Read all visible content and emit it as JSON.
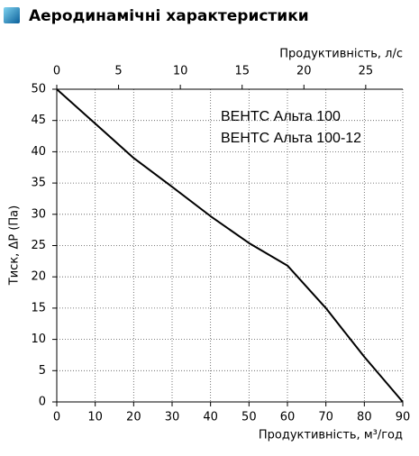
{
  "chart_data": {
    "type": "line",
    "title": "Аеродинамічні характеристики",
    "xlabel": "Продуктивність, м³/год",
    "x2label": "Продуктивність, л/с",
    "ylabel": "Тиск, ΔP (Па)",
    "annotations": [
      "ВЕНТС Альта 100",
      "ВЕНТС Альта 100-12"
    ],
    "x": [
      0,
      10,
      20,
      30,
      40,
      50,
      60,
      70,
      80,
      90
    ],
    "series": [
      {
        "color": "#000000",
        "values": [
          50,
          44.5,
          39,
          34.4,
          29.7,
          25.4,
          21.8,
          15,
          7.2,
          0
        ]
      }
    ],
    "xlim": [
      0,
      90
    ],
    "xticks": [
      0,
      10,
      20,
      30,
      40,
      50,
      60,
      70,
      80,
      90
    ],
    "x2lim": [
      0,
      28
    ],
    "x2ticks": [
      0,
      5,
      10,
      15,
      20,
      25
    ],
    "ylim": [
      0,
      50
    ],
    "yticks": [
      0,
      5,
      10,
      15,
      20,
      25,
      30,
      35,
      40,
      45,
      50
    ],
    "grid": true
  }
}
